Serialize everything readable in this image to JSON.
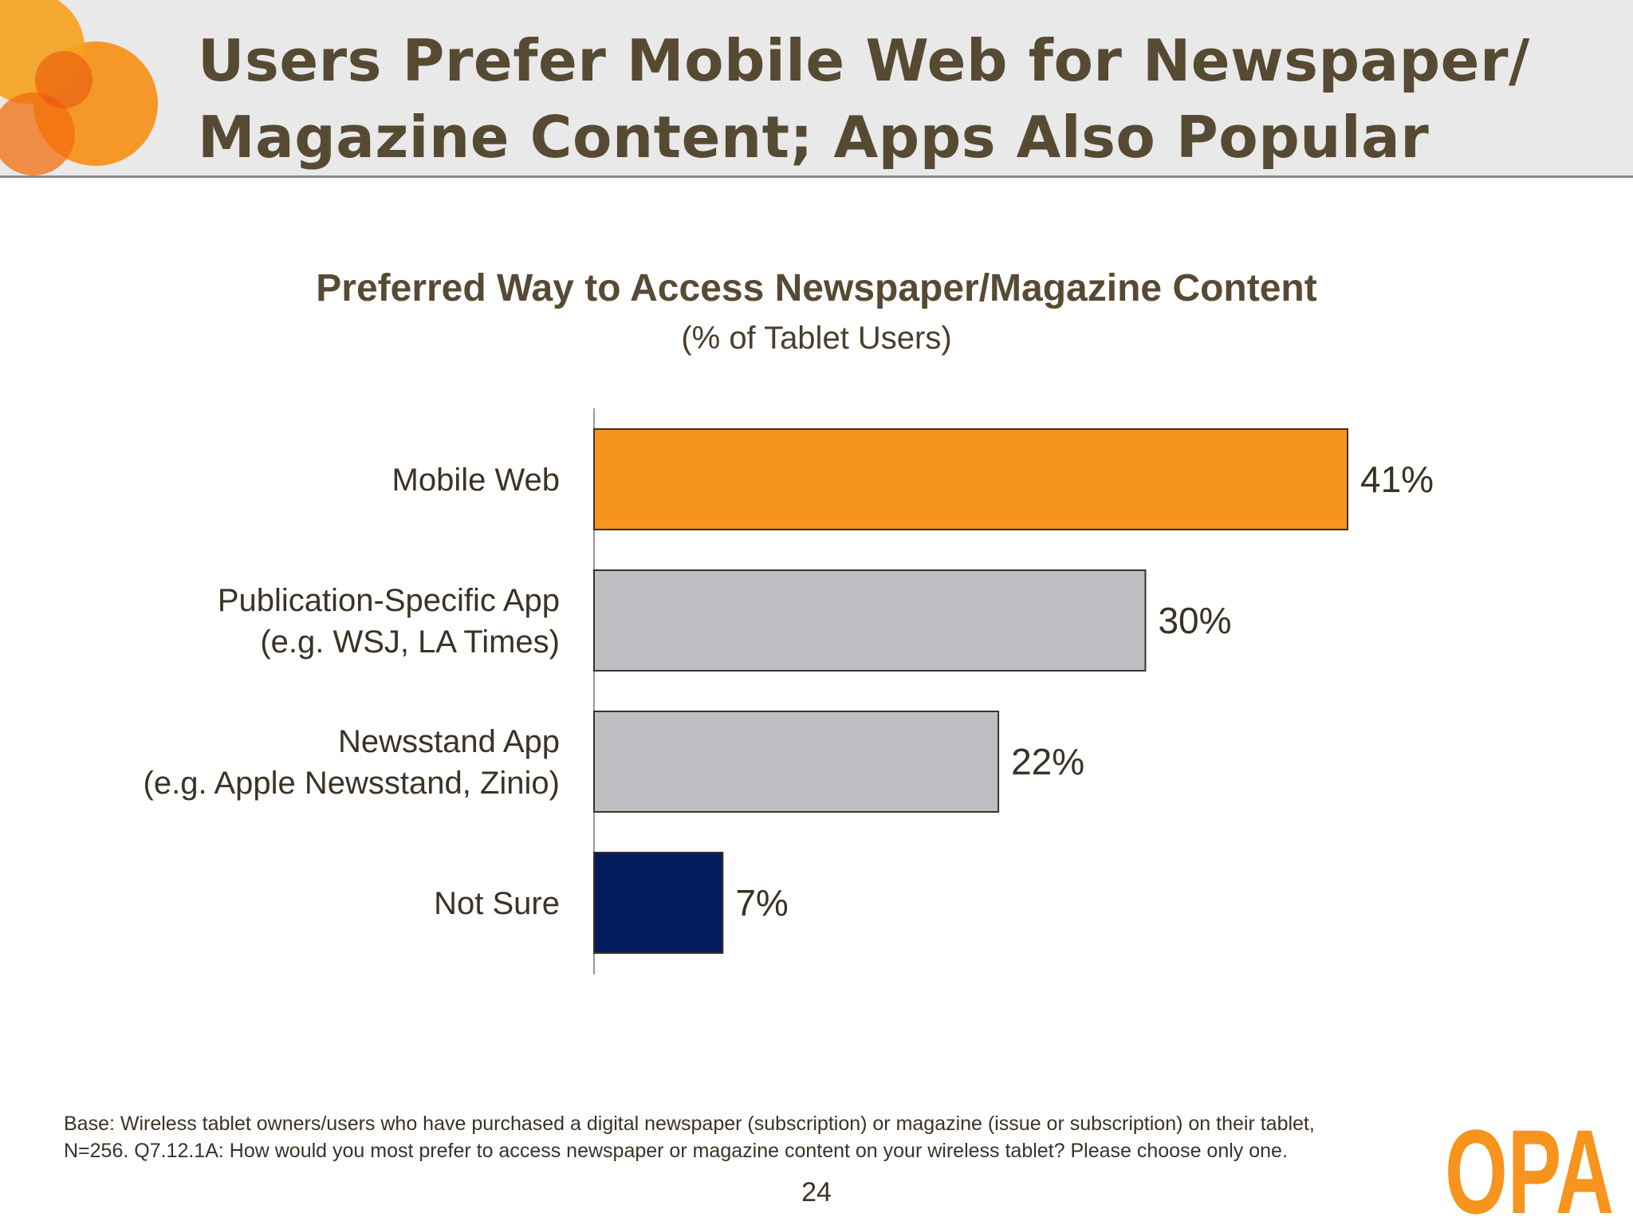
{
  "slide": {
    "title_line1": "Users Prefer Mobile Web for Newspaper/",
    "title_line2": "Magazine Content; Apps Also Popular",
    "footnote_line1": "Base:  Wireless tablet owners/users who have purchased a digital newspaper (subscription) or magazine (issue or subscription) on their tablet,",
    "footnote_line2": "N=256.  Q7.12.1A:  How would you most prefer to access newspaper or magazine content on your wireless tablet? Please choose only one.",
    "page_number": "24",
    "logo_text": "OPA",
    "colors": {
      "accent_orange": "#f7941d",
      "bar_gray": "#bfbec2",
      "bar_navy": "#001c5a",
      "title_brown": "#574a33"
    }
  },
  "chart_data": {
    "type": "bar",
    "orientation": "horizontal",
    "title": "Preferred Way to Access Newspaper/Magazine Content",
    "subtitle": "(% of Tablet Users)",
    "categories": [
      [
        "Mobile Web"
      ],
      [
        "Publication-Specific App",
        "(e.g. WSJ, LA Times)"
      ],
      [
        "Newsstand App",
        "(e.g. Apple Newsstand, Zinio)"
      ],
      [
        "Not Sure"
      ]
    ],
    "values": [
      41,
      30,
      22,
      7
    ],
    "value_labels": [
      "41%",
      "30%",
      "22%",
      "7%"
    ],
    "bar_colors": [
      "#f7941d",
      "#bfbec2",
      "#bfbec2",
      "#001c5a"
    ],
    "xlim": [
      0,
      41
    ],
    "unit": "%",
    "grid": false,
    "legend": false
  }
}
